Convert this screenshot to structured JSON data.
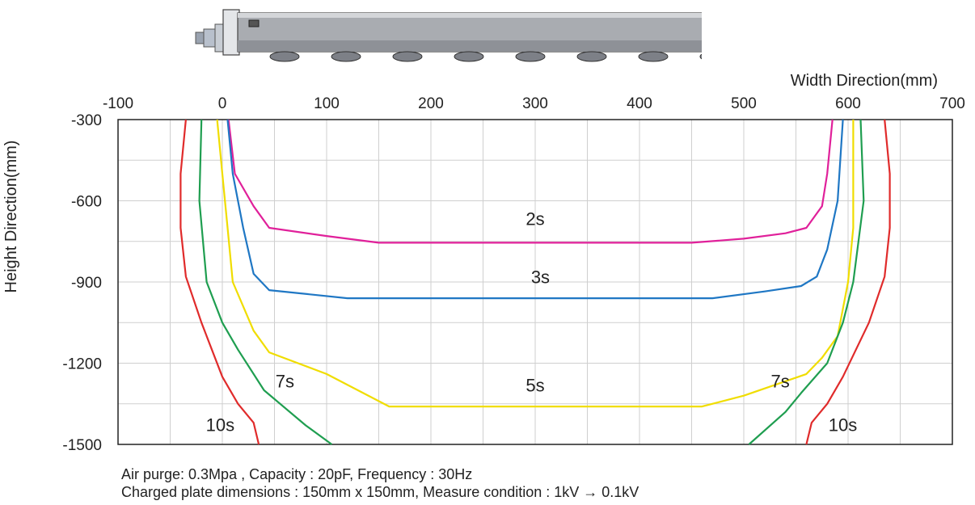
{
  "chart_data": {
    "type": "line",
    "xlabel": "Width Direction(mm)",
    "ylabel": "Height Direction(mm)",
    "xlim": [
      -100,
      700
    ],
    "ylim": [
      -1500,
      -300
    ],
    "x_ticks": [
      -100,
      0,
      100,
      200,
      300,
      400,
      500,
      600,
      700
    ],
    "y_ticks": [
      -300,
      -600,
      -900,
      -1200,
      -1500
    ],
    "grid": true,
    "series": [
      {
        "name": "2s",
        "color": "#e0209a",
        "points": [
          [
            6,
            -300
          ],
          [
            12,
            -500
          ],
          [
            30,
            -620
          ],
          [
            45,
            -700
          ],
          [
            100,
            -730
          ],
          [
            150,
            -755
          ],
          [
            300,
            -755
          ],
          [
            450,
            -755
          ],
          [
            500,
            -740
          ],
          [
            540,
            -720
          ],
          [
            560,
            -700
          ],
          [
            575,
            -620
          ],
          [
            580,
            -500
          ],
          [
            585,
            -300
          ]
        ]
      },
      {
        "name": "3s",
        "color": "#1f77c4",
        "points": [
          [
            5,
            -300
          ],
          [
            10,
            -500
          ],
          [
            20,
            -700
          ],
          [
            30,
            -870
          ],
          [
            45,
            -930
          ],
          [
            120,
            -960
          ],
          [
            300,
            -960
          ],
          [
            470,
            -960
          ],
          [
            520,
            -935
          ],
          [
            555,
            -915
          ],
          [
            570,
            -880
          ],
          [
            580,
            -780
          ],
          [
            590,
            -600
          ],
          [
            595,
            -300
          ]
        ]
      },
      {
        "name": "5s",
        "color": "#f0dd00",
        "points": [
          [
            -5,
            -300
          ],
          [
            0,
            -500
          ],
          [
            5,
            -700
          ],
          [
            10,
            -900
          ],
          [
            30,
            -1080
          ],
          [
            45,
            -1160
          ],
          [
            100,
            -1240
          ],
          [
            160,
            -1360
          ],
          [
            300,
            -1360
          ],
          [
            460,
            -1360
          ],
          [
            500,
            -1320
          ],
          [
            560,
            -1240
          ],
          [
            575,
            -1180
          ],
          [
            590,
            -1100
          ],
          [
            600,
            -900
          ],
          [
            605,
            -700
          ],
          [
            605,
            -500
          ],
          [
            605,
            -300
          ]
        ]
      },
      {
        "name": "7s",
        "color": "#1f9e50",
        "points": [
          [
            -20,
            -300
          ],
          [
            -22,
            -600
          ],
          [
            -15,
            -900
          ],
          [
            0,
            -1050
          ],
          [
            15,
            -1150
          ],
          [
            40,
            -1300
          ],
          [
            80,
            -1430
          ],
          [
            105,
            -1500
          ]
        ]
      },
      {
        "name": "7s-right",
        "color": "#1f9e50",
        "points": [
          [
            612,
            -300
          ],
          [
            615,
            -600
          ],
          [
            605,
            -900
          ],
          [
            595,
            -1050
          ],
          [
            580,
            -1200
          ],
          [
            555,
            -1310
          ],
          [
            540,
            -1380
          ],
          [
            505,
            -1500
          ]
        ]
      },
      {
        "name": "10s",
        "color": "#e02b2b",
        "points": [
          [
            -35,
            -300
          ],
          [
            -40,
            -500
          ],
          [
            -40,
            -700
          ],
          [
            -35,
            -880
          ],
          [
            -20,
            -1050
          ],
          [
            0,
            -1250
          ],
          [
            15,
            -1350
          ],
          [
            30,
            -1420
          ],
          [
            35,
            -1500
          ]
        ]
      },
      {
        "name": "10s-right",
        "color": "#e02b2b",
        "points": [
          [
            635,
            -300
          ],
          [
            640,
            -500
          ],
          [
            640,
            -700
          ],
          [
            635,
            -880
          ],
          [
            620,
            -1050
          ],
          [
            595,
            -1250
          ],
          [
            580,
            -1350
          ],
          [
            565,
            -1420
          ],
          [
            560,
            -1500
          ]
        ]
      }
    ],
    "labels": [
      {
        "text": "2s",
        "x": 300,
        "y": -690
      },
      {
        "text": "3s",
        "x": 305,
        "y": -905
      },
      {
        "text": "5s",
        "x": 300,
        "y": -1305
      },
      {
        "text": "7s",
        "x": 60,
        "y": -1290
      },
      {
        "text": "7s",
        "x": 535,
        "y": -1290
      },
      {
        "text": "10s",
        "x": -2,
        "y": -1450
      },
      {
        "text": "10s",
        "x": 595,
        "y": -1450
      }
    ]
  },
  "notes": {
    "line1": "Air purge: 0.3Mpa , Capacity : 20pF,  Frequency : 30Hz",
    "line2": "Charged plate dimensions : 150mm x 150mm, Measure condition : 1kV  →  0.1kV"
  }
}
